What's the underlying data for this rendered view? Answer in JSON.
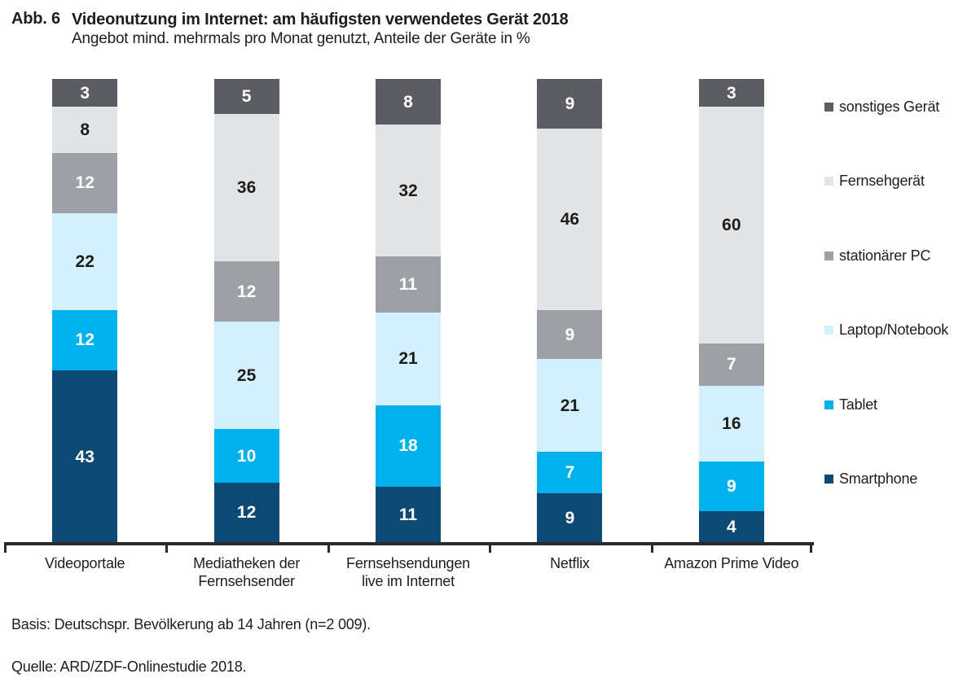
{
  "figure": {
    "label": "Abb. 6",
    "title": "Videonutzung im Internet: am häufigsten verwendetes Gerät 2018",
    "subtitle": "Angebot mind. mehrmals pro Monat genutzt, Anteile der Geräte in %",
    "basis": "Basis: Deutschspr. Bevölkerung ab 14 Jahren (n=2 009).",
    "source": "Quelle: ARD/ZDF-Onlinestudie 2018."
  },
  "colors": {
    "axis": "#2a2a2a",
    "text": "#1d1d1b",
    "background": "#ffffff"
  },
  "chart_data": {
    "type": "bar",
    "stacked": true,
    "unit": "%",
    "title": "Videonutzung im Internet: am häufigsten verwendetes Gerät 2018",
    "subtitle": "Angebot mind. mehrmals pro Monat genutzt, Anteile der Geräte in %",
    "legend_position": "right",
    "grid": false,
    "categories": [
      "Videoportale",
      "Mediatheken der Fernsehsender",
      "Fernsehsendungen live im Internet",
      "Netflix",
      "Amazon Prime Video"
    ],
    "category_lines": [
      [
        "Videoportale"
      ],
      [
        "Mediatheken der",
        "Fernsehsender"
      ],
      [
        "Fernsehsendungen",
        "live im Internet"
      ],
      [
        "Netflix"
      ],
      [
        "Amazon Prime Video"
      ]
    ],
    "series_bottom_to_top": [
      {
        "name": "Smartphone",
        "color": "#0c4a74",
        "label_color": "#ffffff",
        "values": [
          43,
          12,
          11,
          9,
          4
        ]
      },
      {
        "name": "Tablet",
        "color": "#00b1eb",
        "label_color": "#ffffff",
        "values": [
          12,
          10,
          18,
          7,
          9
        ]
      },
      {
        "name": "Laptop/Notebook",
        "color": "#d3f0fc",
        "label_color": "#1d1d1b",
        "values": [
          22,
          25,
          21,
          21,
          16
        ]
      },
      {
        "name": "stationärer PC",
        "color": "#9da0a4",
        "label_color": "#ffffff",
        "values": [
          12,
          12,
          11,
          9,
          7
        ]
      },
      {
        "name": "Fernsehgerät",
        "color": "#e3e4e6",
        "label_color": "#1d1d1b",
        "values": [
          8,
          36,
          32,
          46,
          60
        ]
      },
      {
        "name": "sonstiges Gerät",
        "color": "#5b5d62",
        "label_color": "#ffffff",
        "values": [
          3,
          5,
          8,
          9,
          3
        ]
      }
    ]
  }
}
